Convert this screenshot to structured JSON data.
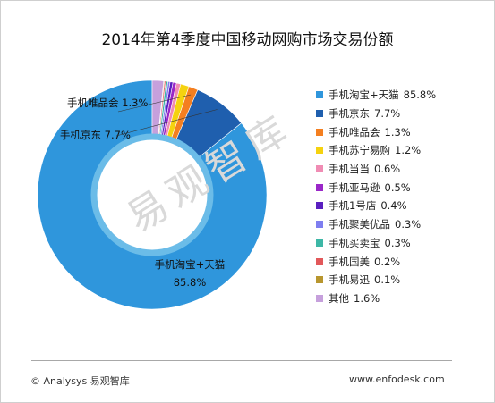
{
  "chart_data": {
    "type": "pie",
    "title": "2014年第4季度中国移动网购市场交易份额",
    "slices": [
      {
        "label": "手机淘宝+天猫",
        "value_text": "85.8%",
        "value": 85.8,
        "color": "#2f96dc"
      },
      {
        "label": "手机京东",
        "value_text": "7.7%",
        "value": 7.7,
        "color": "#1f5fae"
      },
      {
        "label": "手机唯品会",
        "value_text": "1.3%",
        "value": 1.3,
        "color": "#f47f20"
      },
      {
        "label": "手机苏宁易购",
        "value_text": "1.2%",
        "value": 1.2,
        "color": "#f5d20f"
      },
      {
        "label": "手机当当",
        "value_text": "0.6%",
        "value": 0.6,
        "color": "#f08cb4"
      },
      {
        "label": "手机亚马逊",
        "value_text": "0.5%",
        "value": 0.5,
        "color": "#9a27c8"
      },
      {
        "label": "手机1号店",
        "value_text": "0.4%",
        "value": 0.4,
        "color": "#5a1fc0"
      },
      {
        "label": "手机聚美优品",
        "value_text": "0.3%",
        "value": 0.3,
        "color": "#7e7ef0"
      },
      {
        "label": "手机买卖宝",
        "value_text": "0.3%",
        "value": 0.3,
        "color": "#3db7a6"
      },
      {
        "label": "手机国美",
        "value_text": "0.2%",
        "value": 0.2,
        "color": "#e2585a"
      },
      {
        "label": "手机易迅",
        "value_text": "0.1%",
        "value": 0.1,
        "color": "#b8962e"
      },
      {
        "label": "其他",
        "value_text": "1.6%",
        "value": 1.6,
        "color": "#c6a0dc"
      }
    ],
    "slice_labels": [
      {
        "text": "手机淘宝+天猫",
        "slice": 0
      },
      {
        "text": "85.8%",
        "slice": 0
      },
      {
        "text": "手机京东 7.7%",
        "slice": 1
      },
      {
        "text": "手机唯品会 1.3%",
        "slice": 2
      }
    ],
    "legend_position": "right"
  },
  "watermark": "易观智库",
  "footer": {
    "left": "© Analysys 易观智库",
    "right": "www.enfodesk.com"
  }
}
